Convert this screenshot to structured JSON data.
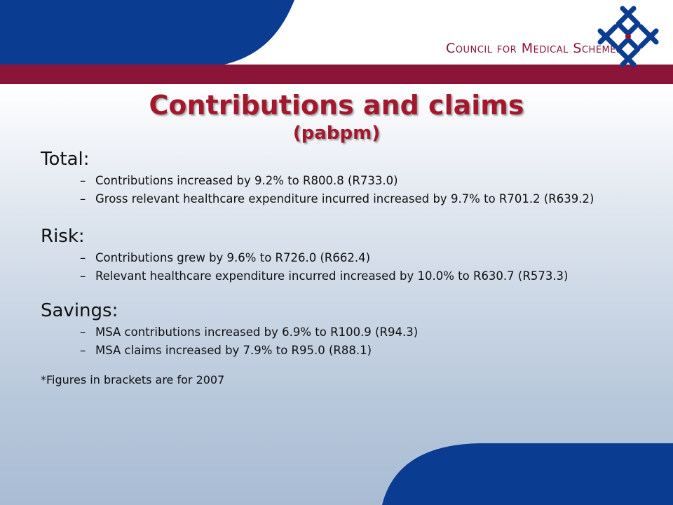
{
  "header": {
    "org_name": "Council for Medical Schemes",
    "colors": {
      "blue": "#0a3d91",
      "maroon": "#8a1538",
      "title": "#a3182d"
    }
  },
  "logo": {
    "icon": "cross-link-icon"
  },
  "title": {
    "line1": "Contributions and claims",
    "line2": "(pabpm)"
  },
  "sections": [
    {
      "heading": "Total:",
      "items": [
        "Contributions increased by 9.2% to R800.8 (R733.0)",
        "Gross relevant healthcare expenditure incurred increased by 9.7% to R701.2 (R639.2)"
      ]
    },
    {
      "heading": "Risk:",
      "items": [
        "Contributions grew by 9.6% to R726.0 (R662.4)",
        "Relevant healthcare expenditure incurred increased by 10.0% to R630.7 (R573.3)"
      ]
    },
    {
      "heading": "Savings:",
      "items": [
        "MSA contributions increased by 6.9% to R100.9 (R94.3)",
        "MSA claims increased by 7.9% to R95.0 (R88.1)"
      ]
    }
  ],
  "footnote": "*Figures in brackets are for 2007"
}
